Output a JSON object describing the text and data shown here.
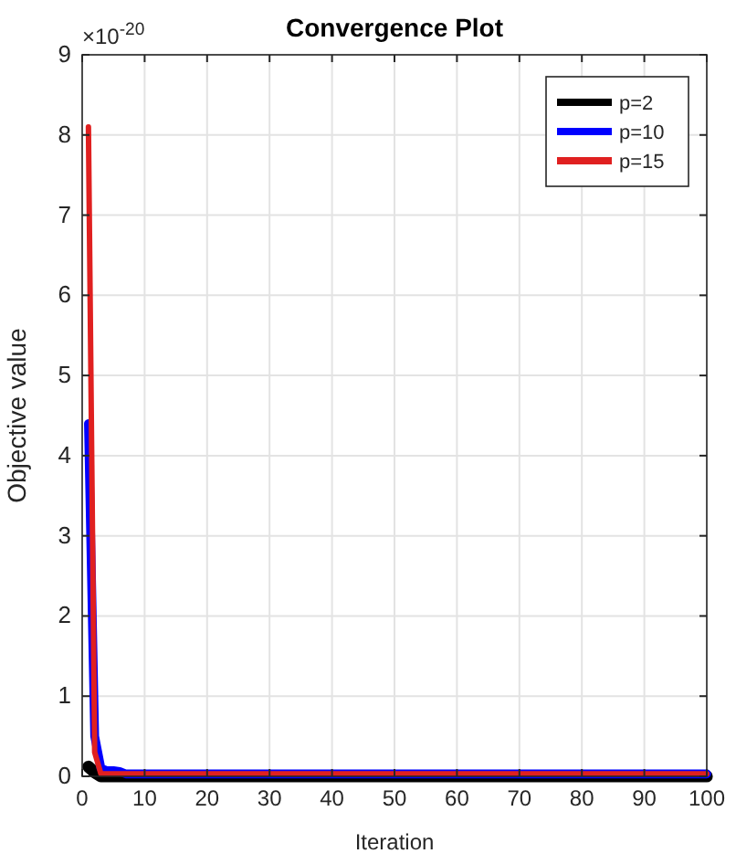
{
  "chart_data": {
    "type": "line",
    "title": "Convergence Plot",
    "xlabel": "Iteration",
    "ylabel": "Objective value",
    "annotations": [
      "×10$^{-20}$"
    ],
    "xlim": [
      0,
      100
    ],
    "xticks": [
      0,
      10,
      20,
      30,
      40,
      50,
      60,
      70,
      80,
      90,
      100
    ],
    "ylim": [
      0,
      9
    ],
    "yticks": [
      0,
      1,
      2,
      3,
      4,
      5,
      6,
      7,
      8,
      9
    ],
    "grid": true,
    "legend": "top right",
    "line_style": "solid",
    "series": [
      {
        "name": "p=2",
        "color": "#000000",
        "x": [
          1,
          2,
          3,
          4,
          100
        ],
        "values": [
          0.12,
          0.05,
          0,
          0,
          0
        ]
      },
      {
        "name": "p=10",
        "color": "#0000ff",
        "x": [
          1,
          2,
          3,
          4,
          5,
          6,
          7,
          8,
          100
        ],
        "values": [
          4.4,
          0.5,
          0.1,
          0.07,
          0.07,
          0.06,
          0.03,
          0.03,
          0.03
        ]
      },
      {
        "name": "p=15",
        "color": "#e02020",
        "x": [
          1,
          2,
          3,
          4,
          5,
          100
        ],
        "values": [
          8.1,
          0.3,
          0.03,
          0.03,
          0.03,
          0.03
        ]
      }
    ]
  }
}
